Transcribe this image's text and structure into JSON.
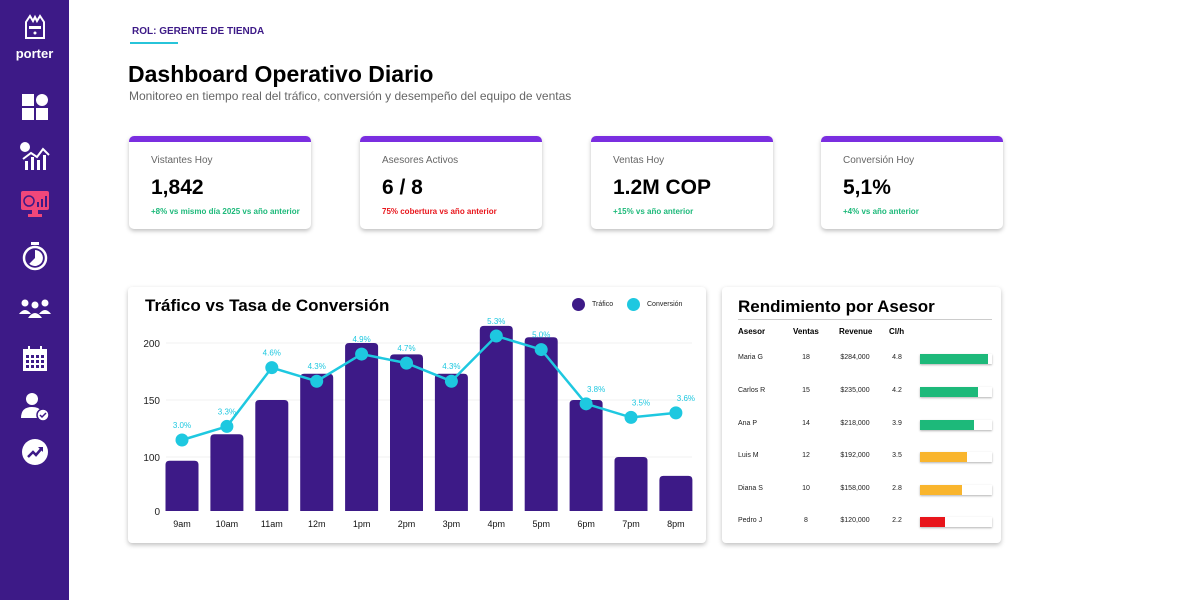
{
  "brand": {
    "name": "porter"
  },
  "sidebar": {
    "items": [
      {
        "icon": "dashboard-grid-icon",
        "active": false
      },
      {
        "icon": "analytics-chart-icon",
        "active": false
      },
      {
        "icon": "monitor-dashboard-icon",
        "active": true
      },
      {
        "icon": "stopwatch-icon",
        "active": false
      },
      {
        "icon": "team-icon",
        "active": false
      },
      {
        "icon": "calendar-icon",
        "active": false
      },
      {
        "icon": "user-check-icon",
        "active": false
      },
      {
        "icon": "trending-up-icon",
        "active": false
      }
    ]
  },
  "header": {
    "role": "ROL: GERENTE DE TIENDA",
    "title": "Dashboard Operativo Diario",
    "subtitle": "Monitoreo en tiempo real del tráfico, conversión y desempeño del equipo de ventas"
  },
  "kpis": [
    {
      "label": "Vistantes Hoy",
      "value": "1,842",
      "delta": "+8% vs mismo día 2025 vs año anterior",
      "delta_color": "#1db97a"
    },
    {
      "label": "Asesores Activos",
      "value": "6 / 8",
      "delta": "75% cobertura vs año anterior",
      "delta_color": "#e8151b"
    },
    {
      "label": "Ventas Hoy",
      "value": "1.2M COP",
      "delta": "+15% vs año anterior",
      "delta_color": "#1db97a"
    },
    {
      "label": "Conversión Hoy",
      "value": "5,1%",
      "delta": "+4% vs año anterior",
      "delta_color": "#1db97a"
    }
  ],
  "colors": {
    "sidebar": "#3d1a87",
    "accent": "#7a2ee0",
    "bars": "#3d1a87",
    "line": "#1ec8e0",
    "green": "#1db97a",
    "yellow": "#f9b52d",
    "red": "#e8151b",
    "active_icon": "#f0477a"
  },
  "chart_data": {
    "type": "bar+line",
    "title": "Tráfico vs Tasa de Conversión",
    "categories": [
      "9am",
      "10am",
      "11am",
      "12m",
      "1pm",
      "2pm",
      "3pm",
      "4pm",
      "5pm",
      "6pm",
      "7pm",
      "8pm"
    ],
    "yticks": [
      0,
      100,
      150,
      200
    ],
    "series": [
      {
        "name": "Tráfico",
        "type": "bar",
        "values": [
          93,
          120,
          150,
          173,
          200,
          190,
          173,
          215,
          205,
          150,
          100,
          65
        ]
      },
      {
        "name": "Conversión",
        "type": "line",
        "unit": "%",
        "values": [
          3.0,
          3.3,
          4.6,
          4.3,
          4.9,
          4.7,
          4.3,
          5.3,
          5.0,
          3.8,
          3.5,
          3.6
        ],
        "labels": [
          "3.0%",
          "3.3%",
          "4.6%",
          "4.3%",
          "4.9%",
          "4.7%",
          "4.3%",
          "5.3%",
          "5.0%",
          "3.8%",
          "3.5%",
          "3.6%"
        ]
      }
    ],
    "legend": "top-right",
    "grid": true
  },
  "table": {
    "title": "Rendimiento por Asesor",
    "headers": [
      "Asesor",
      "Ventas",
      "Revenue",
      "Cl/h"
    ],
    "rows": [
      {
        "name": "Maria G",
        "ventas": "18",
        "revenue": "$284,000",
        "clh": "4.8",
        "fill": 0.94,
        "color": "#1db97a"
      },
      {
        "name": "Carlos R",
        "ventas": "15",
        "revenue": "$235,000",
        "clh": "4.2",
        "fill": 0.8,
        "color": "#1db97a"
      },
      {
        "name": "Ana P",
        "ventas": "14",
        "revenue": "$218,000",
        "clh": "3.9",
        "fill": 0.75,
        "color": "#1db97a"
      },
      {
        "name": "Luis M",
        "ventas": "12",
        "revenue": "$192,000",
        "clh": "3.5",
        "fill": 0.65,
        "color": "#f9b52d"
      },
      {
        "name": "Diana S",
        "ventas": "10",
        "revenue": "$158,000",
        "clh": "2.8",
        "fill": 0.58,
        "color": "#f9b52d"
      },
      {
        "name": "Pedro J",
        "ventas": "8",
        "revenue": "$120,000",
        "clh": "2.2",
        "fill": 0.35,
        "color": "#e8151b"
      }
    ]
  }
}
